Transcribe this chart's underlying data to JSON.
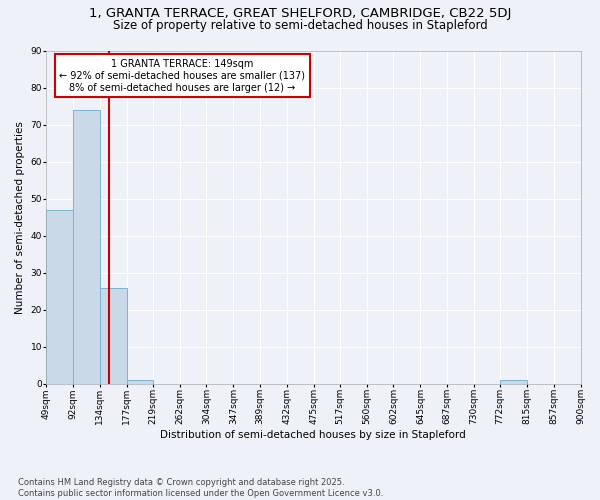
{
  "title1": "1, GRANTA TERRACE, GREAT SHELFORD, CAMBRIDGE, CB22 5DJ",
  "title2": "Size of property relative to semi-detached houses in Stapleford",
  "xlabel": "Distribution of semi-detached houses by size in Stapleford",
  "ylabel": "Number of semi-detached properties",
  "bin_labels": [
    "49sqm",
    "92sqm",
    "134sqm",
    "177sqm",
    "219sqm",
    "262sqm",
    "304sqm",
    "347sqm",
    "389sqm",
    "432sqm",
    "475sqm",
    "517sqm",
    "560sqm",
    "602sqm",
    "645sqm",
    "687sqm",
    "730sqm",
    "772sqm",
    "815sqm",
    "857sqm",
    "900sqm"
  ],
  "bar_values": [
    47,
    74,
    26,
    1,
    0,
    0,
    0,
    0,
    0,
    0,
    0,
    0,
    0,
    0,
    0,
    0,
    0,
    1,
    0,
    0
  ],
  "bar_color": "#c9d9e8",
  "bar_edge_color": "#7ab4d4",
  "property_line_x": 149,
  "bin_edges": [
    49,
    92,
    134,
    177,
    219,
    262,
    304,
    347,
    389,
    432,
    475,
    517,
    560,
    602,
    645,
    687,
    730,
    772,
    815,
    857,
    900
  ],
  "annotation_title": "1 GRANTA TERRACE: 149sqm",
  "annotation_line1": "← 92% of semi-detached houses are smaller (137)",
  "annotation_line2": "8% of semi-detached houses are larger (12) →",
  "annotation_box_color": "#ffffff",
  "annotation_box_edge": "#cc0000",
  "vline_color": "#cc0000",
  "ylim": [
    0,
    90
  ],
  "yticks": [
    0,
    10,
    20,
    30,
    40,
    50,
    60,
    70,
    80,
    90
  ],
  "footnote": "Contains HM Land Registry data © Crown copyright and database right 2025.\nContains public sector information licensed under the Open Government Licence v3.0.",
  "bg_color": "#eef2f8",
  "grid_color": "#ffffff",
  "title_fontsize": 9.5,
  "subtitle_fontsize": 8.5,
  "axis_label_fontsize": 7.5,
  "tick_fontsize": 6.5,
  "annotation_fontsize": 7,
  "footnote_fontsize": 6
}
